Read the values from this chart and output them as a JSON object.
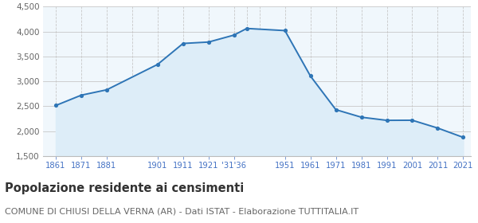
{
  "years": [
    1861,
    1871,
    1881,
    1901,
    1911,
    1921,
    1931,
    1936,
    1951,
    1961,
    1971,
    1981,
    1991,
    2001,
    2011,
    2021
  ],
  "population": [
    2516,
    2723,
    2831,
    3341,
    3762,
    3790,
    3930,
    4063,
    4020,
    3108,
    2432,
    2281,
    2218,
    2220,
    2063,
    1876
  ],
  "line_color": "#2e75b6",
  "fill_color": "#ddedf8",
  "marker_color": "#2e75b6",
  "grid_color": "#c8c8c8",
  "axes_bg_color": "#f0f7fc",
  "background_color": "#ffffff",
  "ylim": [
    1500,
    4500
  ],
  "yticks": [
    1500,
    2000,
    2500,
    3000,
    3500,
    4000,
    4500
  ],
  "title": "Popolazione residente ai censimenti",
  "subtitle": "COMUNE DI CHIUSI DELLA VERNA (AR) - Dati ISTAT - Elaborazione TUTTITALIA.IT",
  "title_fontsize": 10.5,
  "subtitle_fontsize": 8.0,
  "tick_label_color": "#4472c4"
}
